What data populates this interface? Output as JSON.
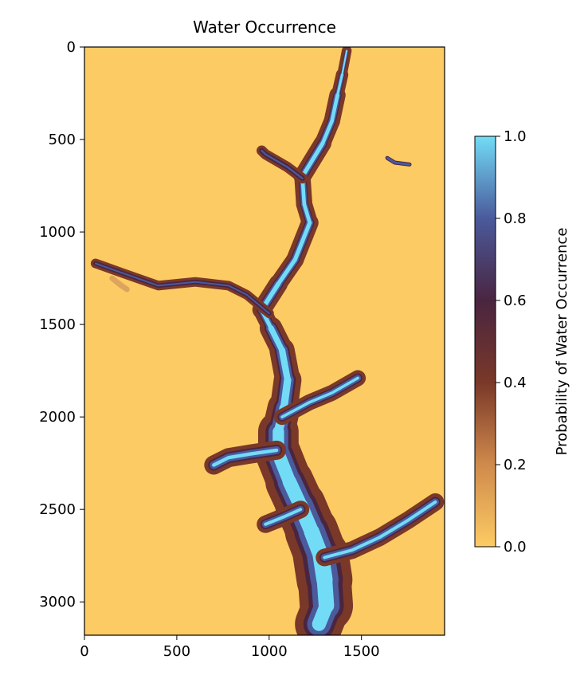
{
  "chart_data": {
    "type": "heatmap",
    "title": "Water Occurrence",
    "xlabel": "",
    "ylabel": "",
    "xlim": [
      0,
      1950
    ],
    "ylim": [
      3180,
      0
    ],
    "x_ticks": [
      0,
      500,
      1000,
      1500
    ],
    "y_ticks": [
      0,
      500,
      1000,
      1500,
      2000,
      2500,
      3000
    ],
    "grid": false,
    "colorbar": {
      "label": "Probability of Water Occurrence",
      "range": [
        0,
        1
      ],
      "ticks": [
        "0.0",
        "0.2",
        "0.4",
        "0.6",
        "0.8",
        "1.0"
      ],
      "tick_values": [
        0,
        0.2,
        0.4,
        0.6,
        0.8,
        1.0
      ],
      "colors": [
        "#fdcb64",
        "#cf8a4c",
        "#7a3828",
        "#4a2540",
        "#4a5a9c",
        "#72dcf6"
      ],
      "stops": [
        0,
        0.2,
        0.4,
        0.6,
        0.8,
        1.0
      ]
    },
    "background_value": 0.0,
    "features": {
      "main_channel": [
        [
          1420,
          20
        ],
        [
          1395,
          150
        ],
        [
          1370,
          260
        ],
        [
          1340,
          400
        ],
        [
          1290,
          520
        ],
        [
          1180,
          700
        ],
        [
          1190,
          850
        ],
        [
          1220,
          950
        ],
        [
          1140,
          1150
        ],
        [
          1050,
          1280
        ],
        [
          960,
          1420
        ],
        [
          1010,
          1520
        ],
        [
          1070,
          1640
        ],
        [
          1100,
          1800
        ],
        [
          1080,
          1950
        ],
        [
          1050,
          2080
        ],
        [
          1050,
          2200
        ],
        [
          1110,
          2350
        ],
        [
          1170,
          2480
        ],
        [
          1230,
          2620
        ],
        [
          1280,
          2750
        ],
        [
          1300,
          2880
        ],
        [
          1310,
          3020
        ],
        [
          1270,
          3120
        ]
      ],
      "west_arm": [
        [
          1000,
          1440
        ],
        [
          880,
          1340
        ],
        [
          780,
          1290
        ],
        [
          600,
          1270
        ],
        [
          400,
          1290
        ],
        [
          200,
          1220
        ],
        [
          60,
          1170
        ]
      ],
      "north_arm": [
        [
          1180,
          710
        ],
        [
          1100,
          650
        ],
        [
          980,
          580
        ],
        [
          960,
          560
        ]
      ],
      "east_arm_upper": [
        [
          1070,
          2000
        ],
        [
          1220,
          1920
        ],
        [
          1340,
          1870
        ],
        [
          1480,
          1790
        ]
      ],
      "west_arm_lower": [
        [
          1040,
          2180
        ],
        [
          900,
          2200
        ],
        [
          780,
          2220
        ],
        [
          700,
          2260
        ]
      ],
      "lower_west_arm": [
        [
          1170,
          2500
        ],
        [
          1080,
          2540
        ],
        [
          980,
          2580
        ]
      ],
      "east_arm_lower": [
        [
          1300,
          2760
        ],
        [
          1450,
          2720
        ],
        [
          1600,
          2650
        ],
        [
          1750,
          2560
        ],
        [
          1900,
          2460
        ]
      ],
      "isolated_pond": [
        [
          1640,
          600
        ],
        [
          1680,
          625
        ],
        [
          1760,
          635
        ]
      ],
      "small_blob": [
        [
          150,
          1250
        ],
        [
          200,
          1290
        ],
        [
          230,
          1310
        ]
      ]
    }
  }
}
